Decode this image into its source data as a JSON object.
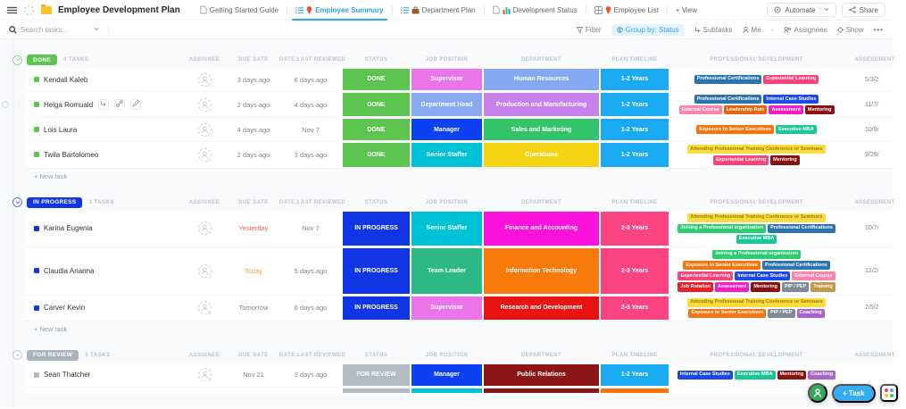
{
  "header": {
    "title": "Employee Development Plan",
    "tabs": [
      {
        "label": "Getting Started Guide",
        "icons": [
          "document-icon"
        ],
        "active": false
      },
      {
        "label": "Employee Summary",
        "icons": [
          "list-icon",
          "pin-icon"
        ],
        "active": true
      },
      {
        "label": "Department Plan",
        "icons": [
          "list-icon",
          "briefcase-icon"
        ],
        "active": false
      },
      {
        "label": "Development Status",
        "icons": [
          "document-icon",
          "bar-chart-icon"
        ],
        "active": false
      },
      {
        "label": "Employee List",
        "icons": [
          "table-icon",
          "pin-icon"
        ],
        "active": false
      }
    ],
    "add_view_label": "+ View",
    "automate_label": "Automate",
    "share_label": "Share"
  },
  "toolbar": {
    "search_placeholder": "Search tasks...",
    "filter_label": "Filter",
    "group_by_label": "Group by: Status",
    "subtasks_label": "Subtasks",
    "me_label": "Me",
    "assignees_label": "Assignees",
    "show_label": "Show",
    "more_label": "•••"
  },
  "table": {
    "columns": [
      "ASSIGNEE",
      "DUE DATE",
      "DATE LAST REVIEWED",
      "STATUS",
      "JOB POSITION",
      "DEPARTMENT",
      "PLAN TIMELINE",
      "PROFESSIONAL DEVELOPMENT",
      "ASSESSMENT"
    ],
    "new_task_label": "+ New task"
  },
  "palette": {
    "status": {
      "DONE": "#5ec450",
      "IN PROGRESS": "#1135e5",
      "FOR REVIEW": "#b3bac2"
    },
    "positions": {
      "Supervisor": "#ea75e8",
      "Department Head": "#87aaf3",
      "Manager": "#0b41f0",
      "Senior Staffer": "#00c2d6",
      "Team Leader": "#2eb886"
    },
    "departments": {
      "Human Resources": "#84a9f2",
      "Production and Manufacturing": "#c682ea",
      "Sales and Marketing": "#33c46a",
      "Operations": "#f5d415",
      "Finance and Accounting": "#fb13dd",
      "Information Technology": "#f87a0b",
      "Research and Development": "#e81313",
      "Public Relations": "#8c1515"
    },
    "timelines": {
      "1-2 Years": "#1aa9f3",
      "2-3 Years": "#fb4382"
    },
    "badges": {
      "Professional Certifications": {
        "bg": "#2d73ad"
      },
      "Experiential Learning": {
        "bg": "#fb4379"
      },
      "Internal Case Studies": {
        "bg": "#1d49e8"
      },
      "External Course": {
        "bg": "#fa86ae"
      },
      "Leadership Role": {
        "bg": "#e8650d"
      },
      "Assessment": {
        "bg": "#f21fc4"
      },
      "Mentoring": {
        "bg": "#8c1111"
      },
      "Exposure to Senior Executives": {
        "bg": "#f2750f"
      },
      "Executive MBA": {
        "bg": "#19c795"
      },
      "Attending Professional Training Conference or Seminars": {
        "bg": "#fbdc3f",
        "fg": "#9c7b0e"
      },
      "Joining a Professional organization": {
        "bg": "#2ecc71"
      },
      "Job Rotation": {
        "bg": "#e8202c"
      },
      "PIP / PEP": {
        "bg": "#7e8a96"
      },
      "Training": {
        "bg": "#c09a4a"
      },
      "Coaching": {
        "bg": "#a864c8"
      }
    }
  },
  "groups": [
    {
      "status": "DONE",
      "count_label": "4 TASKS",
      "show_new_task": true,
      "rows": [
        {
          "name": "Kendall Kaleb",
          "due": "3 days ago",
          "reviewed": "6 days ago",
          "position": "Supervisor",
          "department": "Human Resources",
          "timeline": "1-2 Years",
          "development": [
            "Professional Certifications",
            "Experiential Learning"
          ],
          "assessment": "5/3/2"
        },
        {
          "name": "Helga Romuald",
          "hover": true,
          "due": "2 days ago",
          "reviewed": "4 days ago",
          "position": "Department Head",
          "department": "Production and Manufacturing",
          "timeline": "1-2 Years",
          "development": [
            "Professional Certifications",
            "Internal Case Studies",
            "External Course",
            "Leadership Role",
            "Assessment",
            "Mentoring"
          ],
          "assessment": "11/7/"
        },
        {
          "name": "Lois Laura",
          "due": "4 days ago",
          "reviewed": "Nov 7",
          "position": "Manager",
          "department": "Sales and Marketing",
          "timeline": "1-2 Years",
          "development": [
            "Exposure to Senior Executives",
            "Executive MBA"
          ],
          "assessment": "10/8/"
        },
        {
          "name": "Twila Bartolomeo",
          "due": "2 days ago",
          "reviewed": "3 days ago",
          "position": "Senior Staffer",
          "department": "Operations",
          "timeline": "1-2 Years",
          "development": [
            "Attending Professional Training Conference or Seminars",
            "Experiential Learning",
            "Mentoring"
          ],
          "assessment": "9/28/"
        }
      ]
    },
    {
      "status": "IN PROGRESS",
      "count_label": "3 TASKS",
      "show_new_task": true,
      "rows": [
        {
          "name": "Karina Eugenia",
          "due": "Yesterday",
          "due_color": "#ee5a52",
          "reviewed": "Nov 7",
          "position": "Senior Staffer",
          "department": "Finance and Accounting",
          "timeline": "2-3 Years",
          "development": [
            "Attending Professional Training Conference or Seminars",
            "Joining a Professional organization",
            "Professional Certifications",
            "Executive MBA"
          ],
          "assessment": "10/7/"
        },
        {
          "name": "Claudia Arianna",
          "due": "Today",
          "due_color": "#f59a47",
          "reviewed": "5 days ago",
          "position": "Team Leader",
          "department": "Information Technology",
          "timeline": "2-3 Years",
          "development": [
            "Joining a Professional organization",
            "Exposure to Senior Executives",
            "Professional Certifications",
            "Experiential Learning",
            "Internal Case Studies",
            "External Course",
            "Job Rotation",
            "Assessment",
            "Mentoring",
            "PIP / PEP",
            "Training"
          ],
          "assessment": "12/2/"
        },
        {
          "name": "Carver Kevin",
          "due": "Tomorrow",
          "reviewed": "6 days ago",
          "position": "Supervisor",
          "department": "Research and Development",
          "timeline": "2-3 Years",
          "development": [
            "Attending Professional Training Conference or Seminars",
            "Exposure to Senior Executives",
            "PIP / PEP",
            "Coaching"
          ],
          "assessment": "2/5/2"
        }
      ]
    },
    {
      "status": "FOR REVIEW",
      "count_label": "3 TASKS",
      "show_new_task": false,
      "rows": [
        {
          "name": "Sean Thatcher",
          "due": "Nov 21",
          "reviewed": "3 days ago",
          "position": "Manager",
          "department": "Public Relations",
          "timeline": "1-2 Years",
          "development": [
            "Internal Case Studies",
            "Executive MBA",
            "Mentoring",
            "Coaching"
          ],
          "assessment": ""
        }
      ],
      "partial_row": {
        "status_color": "#b3bac2",
        "position_color": "#00c2d6",
        "department_color": "#8c1515",
        "timeline_color": "#f8720c"
      }
    }
  ],
  "floating": {
    "task_label": "+ Task"
  }
}
